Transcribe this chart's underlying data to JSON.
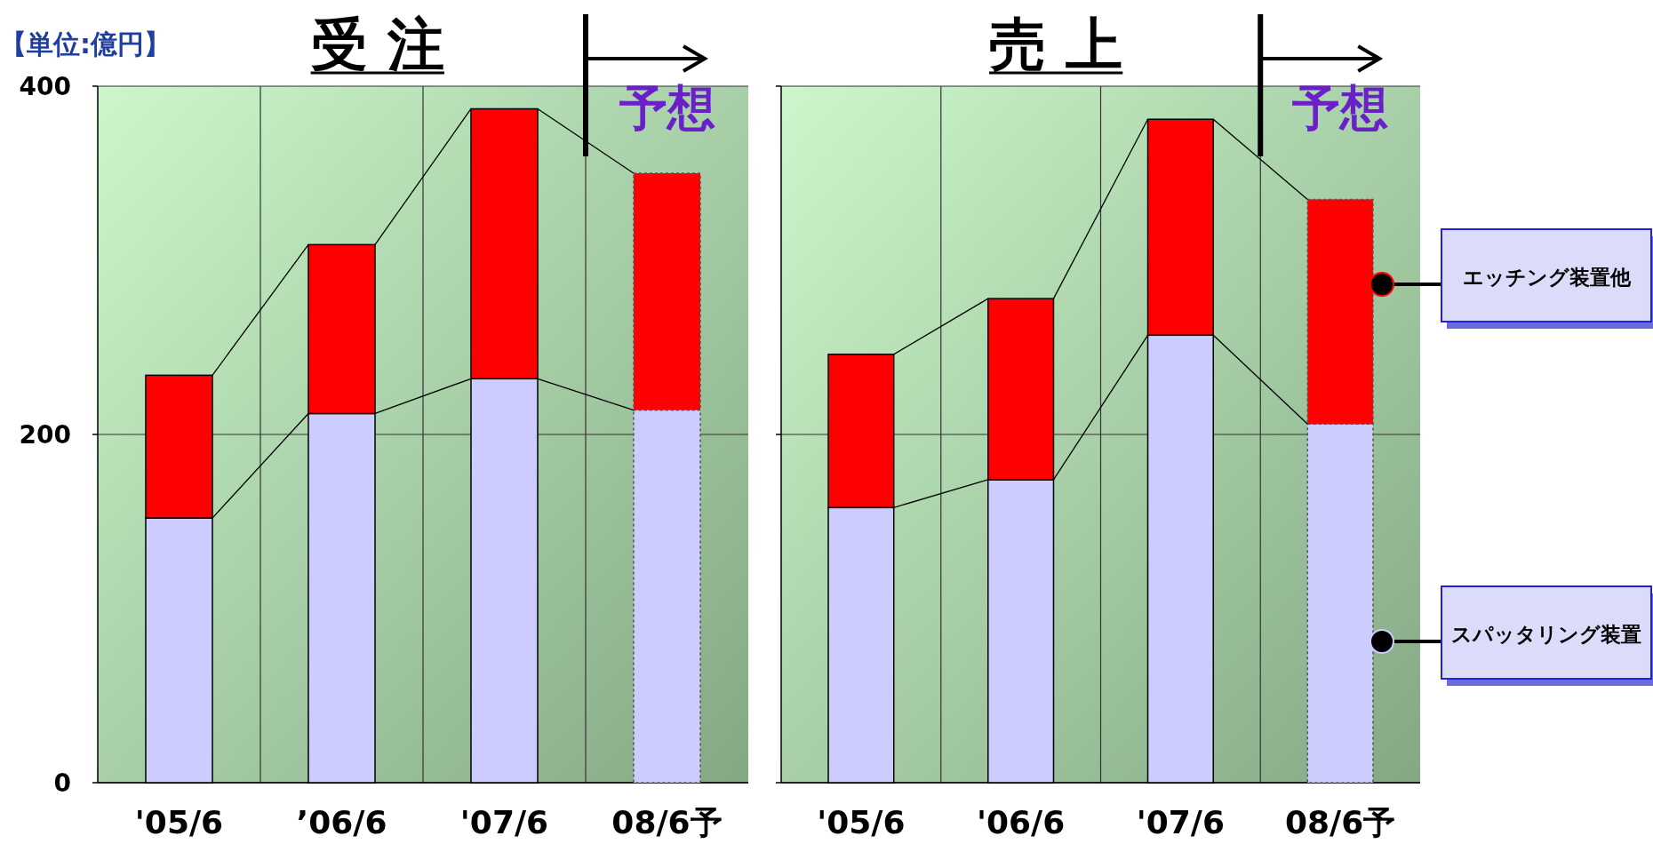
{
  "chart_data": [
    {
      "type": "bar",
      "title": "受 注",
      "stacked": true,
      "grid": true,
      "categories": [
        "'05/6",
        "’06/6",
        "'07/6",
        "08/6予"
      ],
      "ylim": [
        0,
        400
      ],
      "yticks": [
        0,
        200,
        400
      ],
      "series": [
        {
          "color": "#ccccff",
          "values": [
            152,
            212,
            232,
            214
          ]
        },
        {
          "color": "#ff0000",
          "values": [
            82,
            97,
            155,
            136
          ]
        }
      ],
      "annotations": [
        "【単位:億円】",
        "予想"
      ]
    },
    {
      "type": "bar",
      "title": "売 上",
      "stacked": true,
      "grid": true,
      "tick_labels": "x",
      "legend": "right",
      "categories": [
        "'05/6",
        "'06/6",
        "'07/6",
        "08/6予"
      ],
      "ylim": [
        0,
        400
      ],
      "yticks": [
        0,
        200,
        400
      ],
      "series": [
        {
          "name": "スパッタリング装置",
          "color": "#ccccff",
          "values": [
            158,
            174,
            257,
            206
          ]
        },
        {
          "name": "エッチング装置他",
          "color": "#ff0000",
          "values": [
            88,
            104,
            124,
            129
          ]
        }
      ],
      "annotations": [
        "予想"
      ]
    }
  ]
}
